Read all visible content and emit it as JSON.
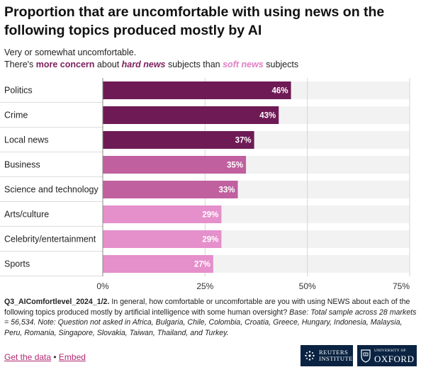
{
  "header": {
    "title": "Proportion that are uncomfortable with using news on the following topics produced mostly by AI",
    "subtitle_line1": "Very or somewhat uncomfortable.",
    "subtitle_line2": {
      "part1": "There's ",
      "highlight1": "more concern",
      "part2": " about ",
      "highlight2": "hard news",
      "part3": " subjects than ",
      "highlight3": "soft news",
      "part4": " subjects"
    }
  },
  "chart_data": {
    "type": "bar",
    "orientation": "horizontal",
    "categories": [
      "Politics",
      "Crime",
      "Local news",
      "Business",
      "Science and technology",
      "Arts/culture",
      "Celebrity/entertainment",
      "Sports"
    ],
    "values": [
      46,
      43,
      37,
      35,
      33,
      29,
      29,
      27
    ],
    "value_labels": [
      "46%",
      "43%",
      "37%",
      "35%",
      "33%",
      "29%",
      "29%",
      "27%"
    ],
    "bar_colors": [
      "#6e1a55",
      "#6e1a55",
      "#6e1a55",
      "#c0609f",
      "#c0609f",
      "#e58fcb",
      "#e58fcb",
      "#e58fcb"
    ],
    "track_color": "#f2f2f2",
    "xlim": [
      0,
      75
    ],
    "x_ticks": [
      0,
      25,
      50,
      75
    ],
    "x_tick_labels": [
      "0%",
      "25%",
      "50%",
      "75%"
    ],
    "grid": true,
    "title": "Proportion that are uncomfortable with using news on the following topics produced mostly by AI"
  },
  "note": {
    "code": "Q3_AIComfortlevel_2024_1/2.",
    "question": " In general, how comfortable or uncomfortable are you with using NEWS about each of the following topics produced mostly by artificial intelligence with some human oversight? ",
    "base": "Base: Total sample across 28 markets = 56,534. Note: Question not asked in Africa, Bulgaria, Chile, Colombia, Croatia, Greece, Hungary, Indonesia, Malaysia, Peru, Romania, Singapore, Slovakia, Taiwan, Thailand, and Turkey."
  },
  "footer": {
    "get_data": "Get the data",
    "separator": " • ",
    "embed": "Embed"
  },
  "logos": {
    "reuters_line1": "REUTERS",
    "reuters_line2": "INSTITUTE",
    "oxford_line1": "UNIVERSITY OF",
    "oxford_line2": "OXFORD",
    "reuters_icon": "dots-sphere-icon",
    "oxford_icon": "crest-icon"
  }
}
